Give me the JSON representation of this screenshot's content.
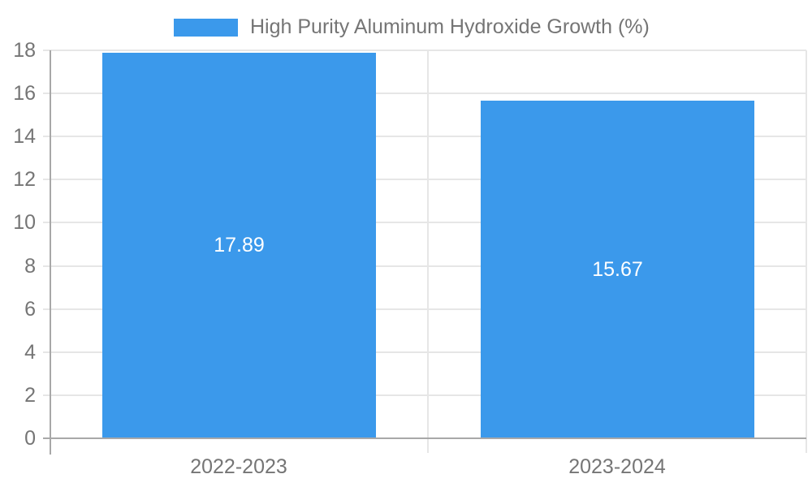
{
  "chart_data": {
    "type": "bar",
    "title": "",
    "categories": [
      "2022-2023",
      "2023-2024"
    ],
    "series": [
      {
        "name": "High Purity Aluminum Hydroxide Growth (%)",
        "values": [
          17.89,
          15.67
        ]
      }
    ],
    "value_labels": [
      "17.89",
      "15.67"
    ],
    "xlabel": "",
    "ylabel": "",
    "ylim": [
      0,
      18
    ],
    "ytick_step": 2,
    "ytick_labels": [
      "0",
      "2",
      "4",
      "6",
      "8",
      "10",
      "12",
      "14",
      "16",
      "18"
    ],
    "grid": true,
    "legend_position": "top-center",
    "colors": {
      "bar": "#3B99EB",
      "axis_text": "#757575",
      "value_label": "#ffffff",
      "gridline": "#e6e6e6",
      "axis_line": "#a8a8a8",
      "background": "#ffffff"
    }
  }
}
